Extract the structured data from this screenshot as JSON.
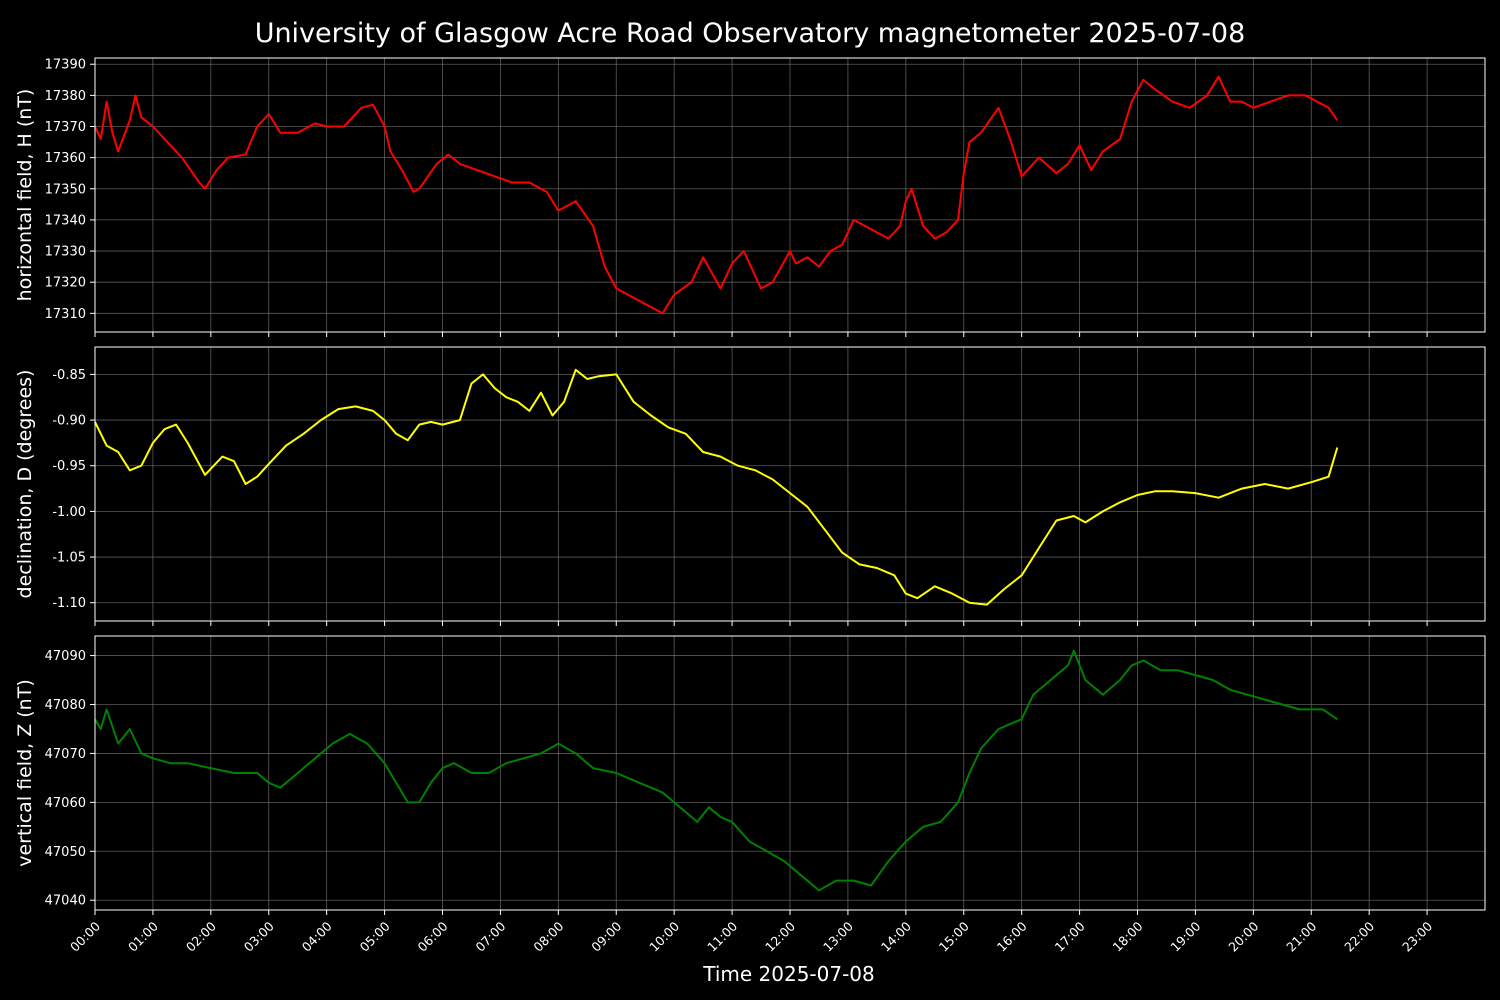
{
  "title": "University of Glasgow Acre Road Observatory magnetometer 2025-07-08",
  "xlabel": "Time 2025-07-08",
  "x_ticks": [
    "00:00",
    "01:00",
    "02:00",
    "03:00",
    "04:00",
    "05:00",
    "06:00",
    "07:00",
    "08:00",
    "09:00",
    "10:00",
    "11:00",
    "12:00",
    "13:00",
    "14:00",
    "15:00",
    "16:00",
    "17:00",
    "18:00",
    "19:00",
    "20:00",
    "21:00",
    "22:00",
    "23:00"
  ],
  "colors": {
    "background": "#000000",
    "grid": "#808080",
    "axes": "#ffffff"
  },
  "chart_data": [
    {
      "type": "line",
      "ylabel": "horizontal field, H (nT)",
      "color": "#ff0000",
      "xlim": [
        0,
        24
      ],
      "ylim": [
        17304,
        17392
      ],
      "yticks": [
        17310,
        17320,
        17330,
        17340,
        17350,
        17360,
        17370,
        17380,
        17390
      ],
      "grid": true,
      "x": [
        0.0,
        0.1,
        0.2,
        0.3,
        0.4,
        0.6,
        0.7,
        0.8,
        1.0,
        1.2,
        1.5,
        1.8,
        1.9,
        2.1,
        2.3,
        2.6,
        2.8,
        3.0,
        3.2,
        3.5,
        3.8,
        4.0,
        4.3,
        4.6,
        4.8,
        5.0,
        5.1,
        5.3,
        5.5,
        5.6,
        5.9,
        6.1,
        6.3,
        6.6,
        6.9,
        7.2,
        7.5,
        7.8,
        8.0,
        8.3,
        8.6,
        8.8,
        9.0,
        9.2,
        9.5,
        9.8,
        10.0,
        10.3,
        10.5,
        10.8,
        11.0,
        11.2,
        11.5,
        11.7,
        12.0,
        12.1,
        12.3,
        12.5,
        12.7,
        12.9,
        13.1,
        13.3,
        13.5,
        13.7,
        13.9,
        14.0,
        14.1,
        14.3,
        14.5,
        14.7,
        14.9,
        15.0,
        15.1,
        15.3,
        15.6,
        15.8,
        16.0,
        16.3,
        16.6,
        16.8,
        17.0,
        17.2,
        17.4,
        17.7,
        17.9,
        18.1,
        18.3,
        18.6,
        18.9,
        19.2,
        19.4,
        19.6,
        19.8,
        20.0,
        20.3,
        20.6,
        20.9,
        21.1,
        21.3,
        21.45
      ],
      "values": [
        17370,
        17366,
        17378,
        17368,
        17362,
        17372,
        17380,
        17373,
        17370,
        17366,
        17360,
        17352,
        17350,
        17356,
        17360,
        17361,
        17370,
        17374,
        17368,
        17368,
        17371,
        17370,
        17370,
        17376,
        17377,
        17370,
        17362,
        17356,
        17349,
        17350,
        17358,
        17361,
        17358,
        17356,
        17354,
        17352,
        17352,
        17349,
        17343,
        17346,
        17338,
        17325,
        17318,
        17316,
        17313,
        17310,
        17316,
        17320,
        17328,
        17318,
        17326,
        17330,
        17318,
        17320,
        17330,
        17326,
        17328,
        17325,
        17330,
        17332,
        17340,
        17338,
        17336,
        17334,
        17338,
        17346,
        17350,
        17338,
        17334,
        17336,
        17340,
        17355,
        17365,
        17368,
        17376,
        17366,
        17354,
        17360,
        17355,
        17358,
        17364,
        17356,
        17362,
        17366,
        17378,
        17385,
        17382,
        17378,
        17376,
        17380,
        17386,
        17378,
        17378,
        17376,
        17378,
        17380,
        17380,
        17378,
        17376,
        17372
      ]
    },
    {
      "type": "line",
      "ylabel": "declination, D (degrees)",
      "color": "#ffff00",
      "xlim": [
        0,
        24
      ],
      "ylim": [
        -1.12,
        -0.82
      ],
      "yticks": [
        -1.1,
        -1.05,
        -1.0,
        -0.95,
        -0.9,
        -0.85
      ],
      "grid": true,
      "x": [
        0.0,
        0.2,
        0.4,
        0.6,
        0.8,
        1.0,
        1.2,
        1.4,
        1.6,
        1.9,
        2.2,
        2.4,
        2.6,
        2.8,
        3.0,
        3.3,
        3.6,
        3.9,
        4.2,
        4.5,
        4.8,
        5.0,
        5.2,
        5.4,
        5.6,
        5.8,
        6.0,
        6.3,
        6.5,
        6.7,
        6.9,
        7.1,
        7.3,
        7.5,
        7.7,
        7.9,
        8.1,
        8.3,
        8.5,
        8.7,
        9.0,
        9.3,
        9.6,
        9.9,
        10.2,
        10.5,
        10.8,
        11.1,
        11.4,
        11.7,
        12.0,
        12.3,
        12.6,
        12.9,
        13.2,
        13.5,
        13.8,
        14.0,
        14.2,
        14.5,
        14.8,
        15.1,
        15.4,
        15.7,
        16.0,
        16.3,
        16.6,
        16.9,
        17.1,
        17.4,
        17.7,
        18.0,
        18.3,
        18.6,
        19.0,
        19.4,
        19.8,
        20.2,
        20.6,
        21.0,
        21.3,
        21.45
      ],
      "values": [
        -0.902,
        -0.928,
        -0.935,
        -0.955,
        -0.95,
        -0.925,
        -0.91,
        -0.905,
        -0.925,
        -0.96,
        -0.94,
        -0.945,
        -0.97,
        -0.962,
        -0.948,
        -0.928,
        -0.915,
        -0.9,
        -0.888,
        -0.885,
        -0.89,
        -0.9,
        -0.915,
        -0.922,
        -0.905,
        -0.902,
        -0.905,
        -0.9,
        -0.86,
        -0.85,
        -0.865,
        -0.875,
        -0.88,
        -0.89,
        -0.87,
        -0.895,
        -0.88,
        -0.845,
        -0.855,
        -0.852,
        -0.85,
        -0.88,
        -0.895,
        -0.908,
        -0.915,
        -0.935,
        -0.94,
        -0.95,
        -0.955,
        -0.965,
        -0.98,
        -0.995,
        -1.02,
        -1.045,
        -1.058,
        -1.062,
        -1.07,
        -1.09,
        -1.095,
        -1.082,
        -1.09,
        -1.1,
        -1.102,
        -1.085,
        -1.07,
        -1.04,
        -1.01,
        -1.005,
        -1.012,
        -1.0,
        -0.99,
        -0.982,
        -0.978,
        -0.978,
        -0.98,
        -0.985,
        -0.975,
        -0.97,
        -0.975,
        -0.968,
        -0.962,
        -0.93
      ]
    },
    {
      "type": "line",
      "ylabel": "vertical field, Z (nT)",
      "color": "#008000",
      "xlim": [
        0,
        24
      ],
      "ylim": [
        47038,
        47094
      ],
      "yticks": [
        47040,
        47050,
        47060,
        47070,
        47080,
        47090
      ],
      "grid": true,
      "x": [
        0.0,
        0.1,
        0.2,
        0.4,
        0.6,
        0.8,
        1.0,
        1.3,
        1.6,
        2.0,
        2.4,
        2.8,
        3.0,
        3.2,
        3.5,
        3.8,
        4.1,
        4.4,
        4.7,
        5.0,
        5.2,
        5.4,
        5.6,
        5.8,
        6.0,
        6.2,
        6.5,
        6.8,
        7.1,
        7.4,
        7.7,
        8.0,
        8.3,
        8.6,
        9.0,
        9.4,
        9.8,
        10.2,
        10.4,
        10.6,
        10.8,
        11.0,
        11.3,
        11.6,
        11.9,
        12.2,
        12.5,
        12.8,
        13.1,
        13.4,
        13.7,
        14.0,
        14.3,
        14.6,
        14.9,
        15.1,
        15.3,
        15.6,
        15.8,
        16.0,
        16.2,
        16.5,
        16.8,
        16.9,
        17.1,
        17.4,
        17.7,
        17.9,
        18.1,
        18.4,
        18.7,
        19.0,
        19.3,
        19.6,
        19.9,
        20.2,
        20.5,
        20.8,
        21.0,
        21.2,
        21.45
      ],
      "values": [
        47077,
        47075,
        47079,
        47072,
        47075,
        47070,
        47069,
        47068,
        47068,
        47067,
        47066,
        47066,
        47064,
        47063,
        47066,
        47069,
        47072,
        47074,
        47072,
        47068,
        47064,
        47060,
        47060,
        47064,
        47067,
        47068,
        47066,
        47066,
        47068,
        47069,
        47070,
        47072,
        47070,
        47067,
        47066,
        47064,
        47062,
        47058,
        47056,
        47059,
        47057,
        47056,
        47052,
        47050,
        47048,
        47045,
        47042,
        47044,
        47044,
        47043,
        47048,
        47052,
        47055,
        47056,
        47060,
        47066,
        47071,
        47075,
        47076,
        47077,
        47082,
        47085,
        47088,
        47091,
        47085,
        47082,
        47085,
        47088,
        47089,
        47087,
        47087,
        47086,
        47085,
        47083,
        47082,
        47081,
        47080,
        47079,
        47079,
        47079,
        47077
      ]
    }
  ]
}
